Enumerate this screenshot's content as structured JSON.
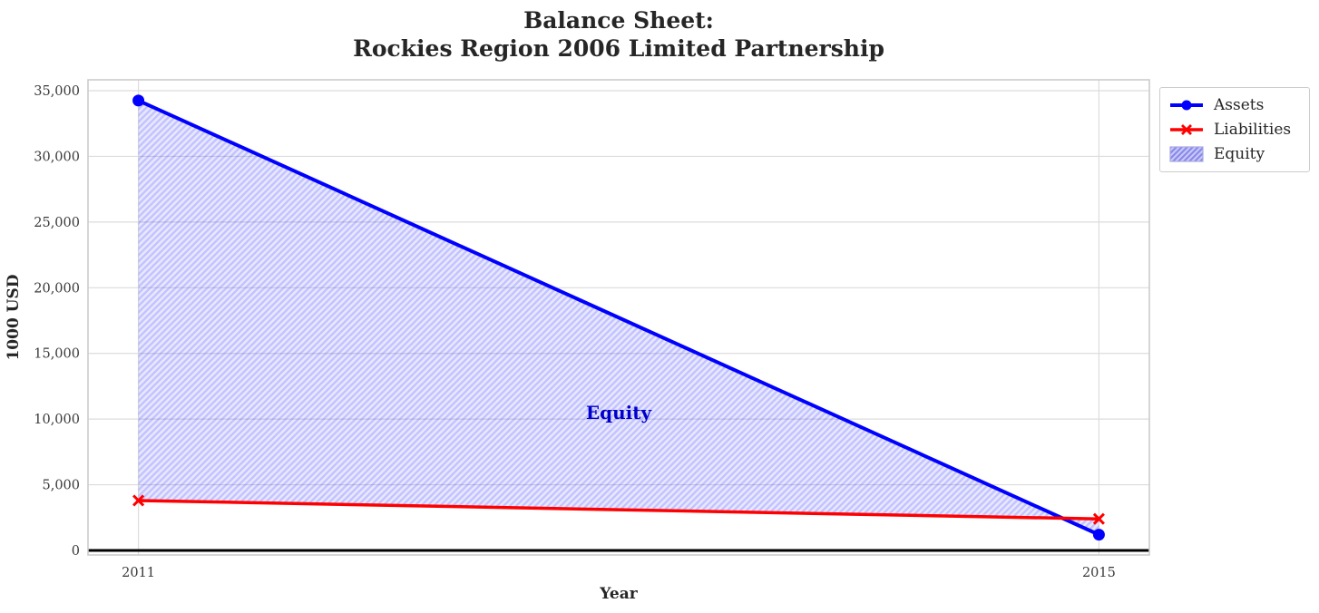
{
  "figure": {
    "title_line1": "Balance Sheet:",
    "title_line2": "Rockies Region 2006 Limited Partnership",
    "background_color": "#ffffff"
  },
  "chart_data": {
    "type": "line",
    "title": "Balance Sheet:\nRockies Region 2006 Limited Partnership",
    "xlabel": "Year",
    "ylabel": "1000 USD",
    "x": [
      2011,
      2015
    ],
    "x_tick_labels": [
      "2011",
      "2015"
    ],
    "y_ticks": [
      0,
      5000,
      10000,
      15000,
      20000,
      25000,
      30000,
      35000
    ],
    "y_tick_labels": [
      "0",
      "5,000",
      "10,000",
      "15,000",
      "20,000",
      "25,000",
      "30,000",
      "35,000"
    ],
    "xlim": [
      2010.79,
      2015.21
    ],
    "ylim": [
      -345,
      35830
    ],
    "grid": true,
    "grid_color": "#dcdcdc",
    "spine_color": "#cccccc",
    "zero_line": {
      "y": 0,
      "color": "#000000"
    },
    "series": [
      {
        "name": "Assets",
        "color": "#0000ff",
        "marker": "circle",
        "values": [
          34250,
          1200
        ]
      },
      {
        "name": "Liabilities",
        "color": "#ff0000",
        "marker": "x",
        "values": [
          3800,
          2400
        ]
      }
    ],
    "fill_between": {
      "label": "Equity",
      "between": [
        "Assets",
        "Liabilities"
      ],
      "face_color": "rgba(0,0,255,0.09)",
      "hatch_color": "rgba(0,0,255,0.16)",
      "hatch_style": "diagonal"
    },
    "annotation": {
      "text": "Equity",
      "x": 2013,
      "y": 10400,
      "color": "#0000cd"
    },
    "legend": {
      "position": "outside-upper-right",
      "entries": [
        {
          "label": "Assets",
          "swatch": "line-circle",
          "color": "#0000ff"
        },
        {
          "label": "Liabilities",
          "swatch": "line-x",
          "color": "#ff0000"
        },
        {
          "label": "Equity",
          "swatch": "hatch-patch",
          "color": "#c5c5ee"
        }
      ]
    }
  }
}
